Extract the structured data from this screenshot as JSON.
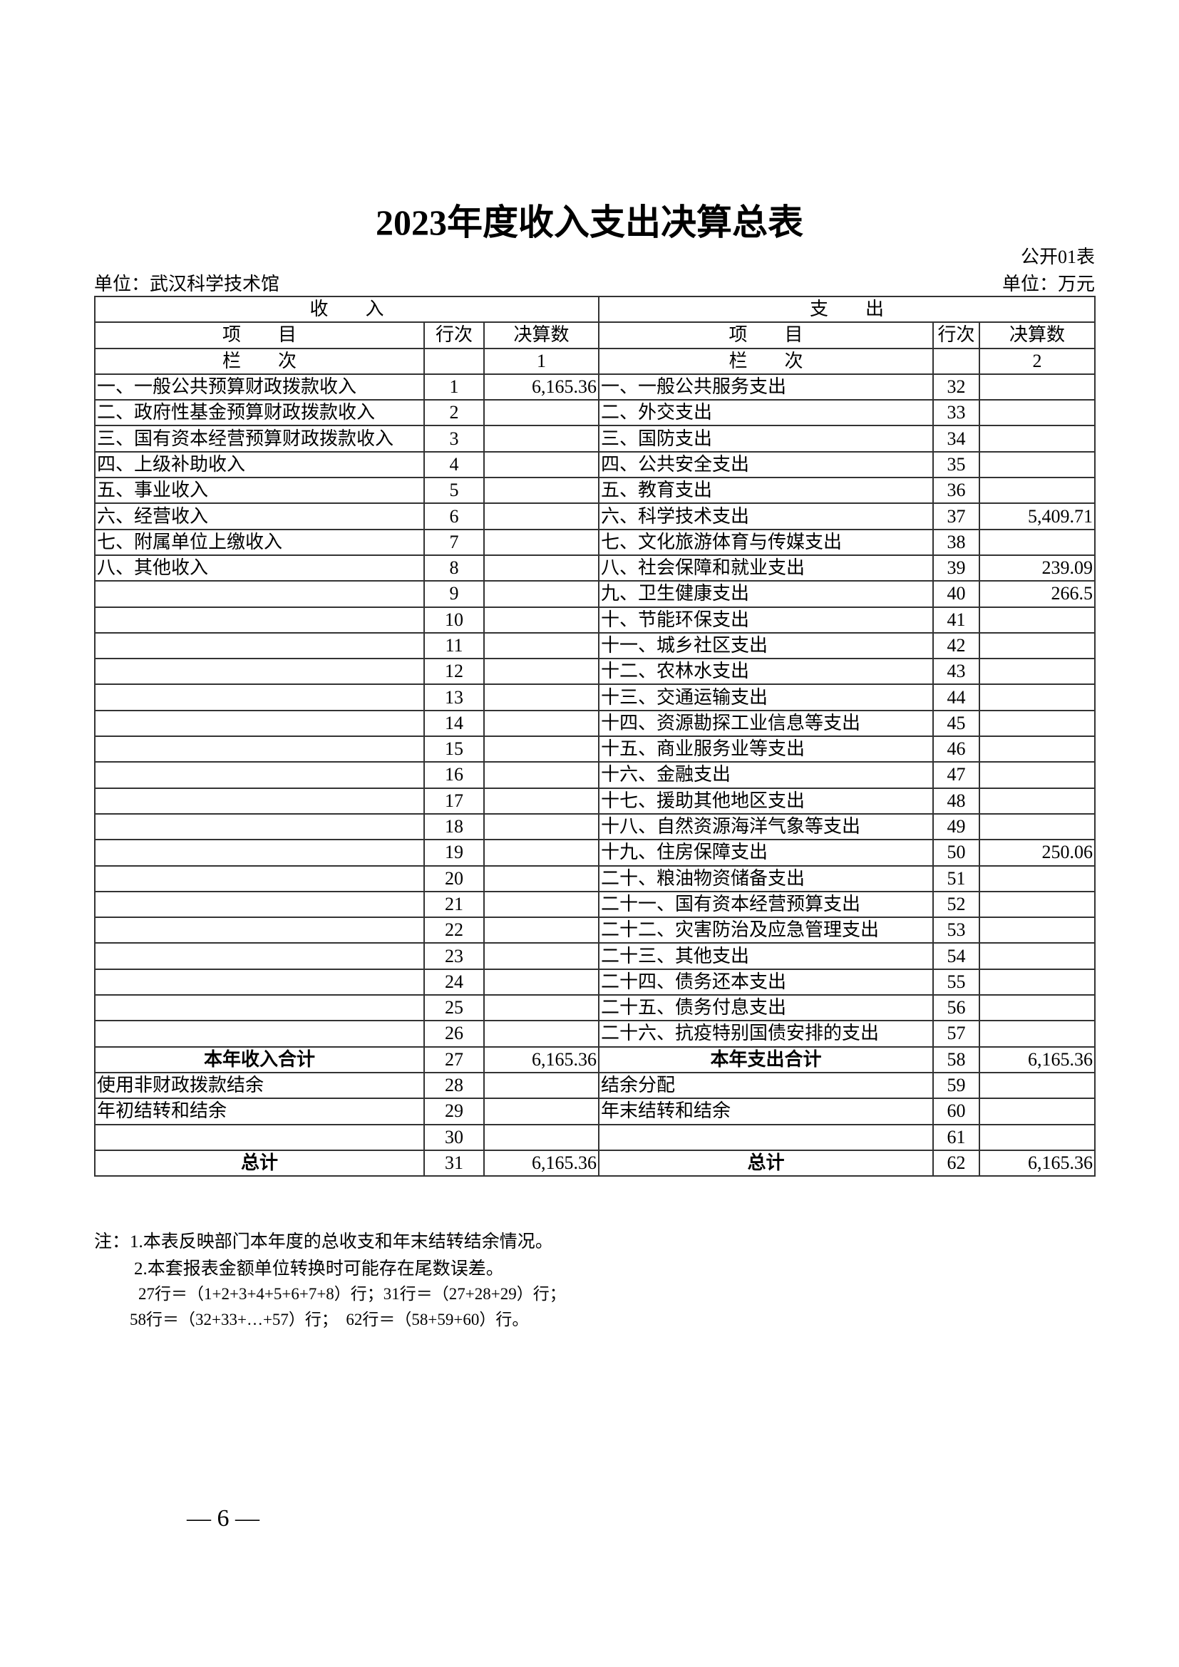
{
  "title": "2023年度收入支出决算总表",
  "form_no": "公开01表",
  "unit_org": "单位：武汉科学技术馆",
  "unit_money": "单位：万元",
  "header": {
    "income": "收　　入",
    "expense": "支　　出",
    "item": "项　　目",
    "line_no": "行次",
    "amount": "决算数",
    "column_label": "栏　　次",
    "income_col": "1",
    "expense_col": "2"
  },
  "rows": [
    {
      "in_item": "一、一般公共预算财政拨款收入",
      "in_no": "1",
      "in_amt": "6,165.36",
      "ex_item": "一、一般公共服务支出",
      "ex_no": "32",
      "ex_amt": ""
    },
    {
      "in_item": "二、政府性基金预算财政拨款收入",
      "in_no": "2",
      "in_amt": "",
      "ex_item": "二、外交支出",
      "ex_no": "33",
      "ex_amt": ""
    },
    {
      "in_item": "三、国有资本经营预算财政拨款收入",
      "in_no": "3",
      "in_amt": "",
      "ex_item": "三、国防支出",
      "ex_no": "34",
      "ex_amt": ""
    },
    {
      "in_item": "四、上级补助收入",
      "in_no": "4",
      "in_amt": "",
      "ex_item": "四、公共安全支出",
      "ex_no": "35",
      "ex_amt": ""
    },
    {
      "in_item": "五、事业收入",
      "in_no": "5",
      "in_amt": "",
      "ex_item": "五、教育支出",
      "ex_no": "36",
      "ex_amt": ""
    },
    {
      "in_item": "六、经营收入",
      "in_no": "6",
      "in_amt": "",
      "ex_item": "六、科学技术支出",
      "ex_no": "37",
      "ex_amt": "5,409.71"
    },
    {
      "in_item": "七、附属单位上缴收入",
      "in_no": "7",
      "in_amt": "",
      "ex_item": "七、文化旅游体育与传媒支出",
      "ex_no": "38",
      "ex_amt": ""
    },
    {
      "in_item": "八、其他收入",
      "in_no": "8",
      "in_amt": "",
      "ex_item": "八、社会保障和就业支出",
      "ex_no": "39",
      "ex_amt": "239.09"
    },
    {
      "in_item": "",
      "in_no": "9",
      "in_amt": "",
      "ex_item": "九、卫生健康支出",
      "ex_no": "40",
      "ex_amt": "266.5"
    },
    {
      "in_item": "",
      "in_no": "10",
      "in_amt": "",
      "ex_item": "十、节能环保支出",
      "ex_no": "41",
      "ex_amt": ""
    },
    {
      "in_item": "",
      "in_no": "11",
      "in_amt": "",
      "ex_item": "十一、城乡社区支出",
      "ex_no": "42",
      "ex_amt": ""
    },
    {
      "in_item": "",
      "in_no": "12",
      "in_amt": "",
      "ex_item": "十二、农林水支出",
      "ex_no": "43",
      "ex_amt": ""
    },
    {
      "in_item": "",
      "in_no": "13",
      "in_amt": "",
      "ex_item": "十三、交通运输支出",
      "ex_no": "44",
      "ex_amt": ""
    },
    {
      "in_item": "",
      "in_no": "14",
      "in_amt": "",
      "ex_item": "十四、资源勘探工业信息等支出",
      "ex_no": "45",
      "ex_amt": ""
    },
    {
      "in_item": "",
      "in_no": "15",
      "in_amt": "",
      "ex_item": "十五、商业服务业等支出",
      "ex_no": "46",
      "ex_amt": ""
    },
    {
      "in_item": "",
      "in_no": "16",
      "in_amt": "",
      "ex_item": "十六、金融支出",
      "ex_no": "47",
      "ex_amt": ""
    },
    {
      "in_item": "",
      "in_no": "17",
      "in_amt": "",
      "ex_item": "十七、援助其他地区支出",
      "ex_no": "48",
      "ex_amt": ""
    },
    {
      "in_item": "",
      "in_no": "18",
      "in_amt": "",
      "ex_item": "十八、自然资源海洋气象等支出",
      "ex_no": "49",
      "ex_amt": ""
    },
    {
      "in_item": "",
      "in_no": "19",
      "in_amt": "",
      "ex_item": "十九、住房保障支出",
      "ex_no": "50",
      "ex_amt": "250.06"
    },
    {
      "in_item": "",
      "in_no": "20",
      "in_amt": "",
      "ex_item": "二十、粮油物资储备支出",
      "ex_no": "51",
      "ex_amt": ""
    },
    {
      "in_item": "",
      "in_no": "21",
      "in_amt": "",
      "ex_item": "二十一、国有资本经营预算支出",
      "ex_no": "52",
      "ex_amt": ""
    },
    {
      "in_item": "",
      "in_no": "22",
      "in_amt": "",
      "ex_item": "二十二、灾害防治及应急管理支出",
      "ex_no": "53",
      "ex_amt": ""
    },
    {
      "in_item": "",
      "in_no": "23",
      "in_amt": "",
      "ex_item": "二十三、其他支出",
      "ex_no": "54",
      "ex_amt": ""
    },
    {
      "in_item": "",
      "in_no": "24",
      "in_amt": "",
      "ex_item": "二十四、债务还本支出",
      "ex_no": "55",
      "ex_amt": ""
    },
    {
      "in_item": "",
      "in_no": "25",
      "in_amt": "",
      "ex_item": "二十五、债务付息支出",
      "ex_no": "56",
      "ex_amt": ""
    },
    {
      "in_item": "",
      "in_no": "26",
      "in_amt": "",
      "ex_item": "二十六、抗疫特别国债安排的支出",
      "ex_no": "57",
      "ex_amt": ""
    },
    {
      "in_item": "本年收入合计",
      "in_no": "27",
      "in_amt": "6,165.36",
      "ex_item": "本年支出合计",
      "ex_no": "58",
      "ex_amt": "6,165.36",
      "bold": true
    },
    {
      "in_item": "使用非财政拨款结余",
      "in_no": "28",
      "in_amt": "",
      "ex_item": "结余分配",
      "ex_no": "59",
      "ex_amt": ""
    },
    {
      "in_item": "年初结转和结余",
      "in_no": "29",
      "in_amt": "",
      "ex_item": "年末结转和结余",
      "ex_no": "60",
      "ex_amt": ""
    },
    {
      "in_item": "",
      "in_no": "30",
      "in_amt": "",
      "ex_item": "",
      "ex_no": "61",
      "ex_amt": ""
    },
    {
      "in_item": "总计",
      "in_no": "31",
      "in_amt": "6,165.36",
      "ex_item": "总计",
      "ex_no": "62",
      "ex_amt": "6,165.36",
      "bold": true
    }
  ],
  "notes": [
    "注：1.本表反映部门本年度的总收支和年末结转结余情况。",
    "2.本套报表金额单位转换时可能存在尾数误差。",
    "27行＝（1+2+3+4+5+6+7+8）行；31行＝（27+28+29）行；",
    "58行＝（32+33+…+57）行；　62行＝（58+59+60）行。"
  ],
  "page_number": "— 6 —"
}
